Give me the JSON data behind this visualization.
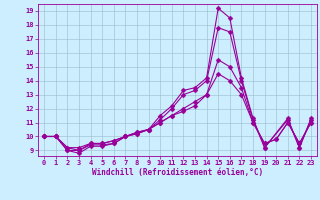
{
  "xlabel": "Windchill (Refroidissement éolien,°C)",
  "background_color": "#cceeff",
  "line_color": "#990099",
  "grid_color": "#99bbcc",
  "xlim": [
    -0.5,
    23.5
  ],
  "ylim": [
    8.6,
    19.5
  ],
  "xticks": [
    0,
    1,
    2,
    3,
    4,
    5,
    6,
    7,
    8,
    9,
    10,
    11,
    12,
    13,
    14,
    15,
    16,
    17,
    18,
    19,
    20,
    21,
    22,
    23
  ],
  "yticks": [
    9,
    10,
    11,
    12,
    13,
    14,
    15,
    16,
    17,
    18,
    19
  ],
  "curve1_x": [
    0,
    1,
    2,
    3,
    4,
    5,
    6,
    7,
    8,
    9,
    10,
    11,
    12,
    13,
    14,
    15,
    16,
    17,
    18,
    19,
    21,
    22,
    23
  ],
  "curve1_y": [
    10.0,
    10.0,
    9.0,
    8.8,
    9.3,
    9.3,
    9.5,
    10.0,
    10.3,
    10.5,
    11.5,
    12.2,
    13.3,
    13.5,
    14.2,
    19.2,
    18.5,
    14.2,
    11.3,
    9.2,
    11.3,
    9.2,
    11.3
  ],
  "curve2_x": [
    0,
    1,
    2,
    3,
    4,
    5,
    6,
    7,
    8,
    9,
    10,
    11,
    12,
    13,
    14,
    15,
    16,
    17,
    18,
    19,
    21,
    22,
    23
  ],
  "curve2_y": [
    10.0,
    10.0,
    9.0,
    9.0,
    9.4,
    9.4,
    9.5,
    10.0,
    10.2,
    10.5,
    11.2,
    12.0,
    13.0,
    13.3,
    14.0,
    17.8,
    17.5,
    14.0,
    11.2,
    9.2,
    11.2,
    9.2,
    11.2
  ],
  "curve3_x": [
    0,
    1,
    2,
    3,
    4,
    5,
    6,
    7,
    8,
    9,
    10,
    11,
    12,
    13,
    14,
    15,
    16,
    17,
    18,
    19,
    20,
    21,
    22,
    23
  ],
  "curve3_y": [
    10.0,
    10.0,
    9.2,
    9.2,
    9.5,
    9.5,
    9.7,
    10.0,
    10.3,
    10.5,
    11.0,
    11.5,
    12.0,
    12.5,
    13.0,
    15.5,
    15.0,
    13.5,
    11.0,
    9.5,
    9.8,
    11.0,
    9.5,
    11.0
  ],
  "curve4_x": [
    0,
    1,
    2,
    3,
    4,
    5,
    6,
    7,
    8,
    9,
    10,
    11,
    12,
    13,
    14,
    15,
    16,
    17,
    18,
    19,
    20,
    21,
    22,
    23
  ],
  "curve4_y": [
    10.0,
    10.0,
    9.2,
    9.0,
    9.5,
    9.5,
    9.7,
    10.0,
    10.2,
    10.5,
    11.0,
    11.5,
    11.8,
    12.2,
    13.0,
    14.5,
    14.0,
    13.0,
    11.0,
    9.5,
    9.8,
    11.0,
    9.5,
    11.0
  ],
  "tick_fontsize": 5,
  "xlabel_fontsize": 5.5,
  "marker_size": 2.5,
  "line_width": 0.8
}
